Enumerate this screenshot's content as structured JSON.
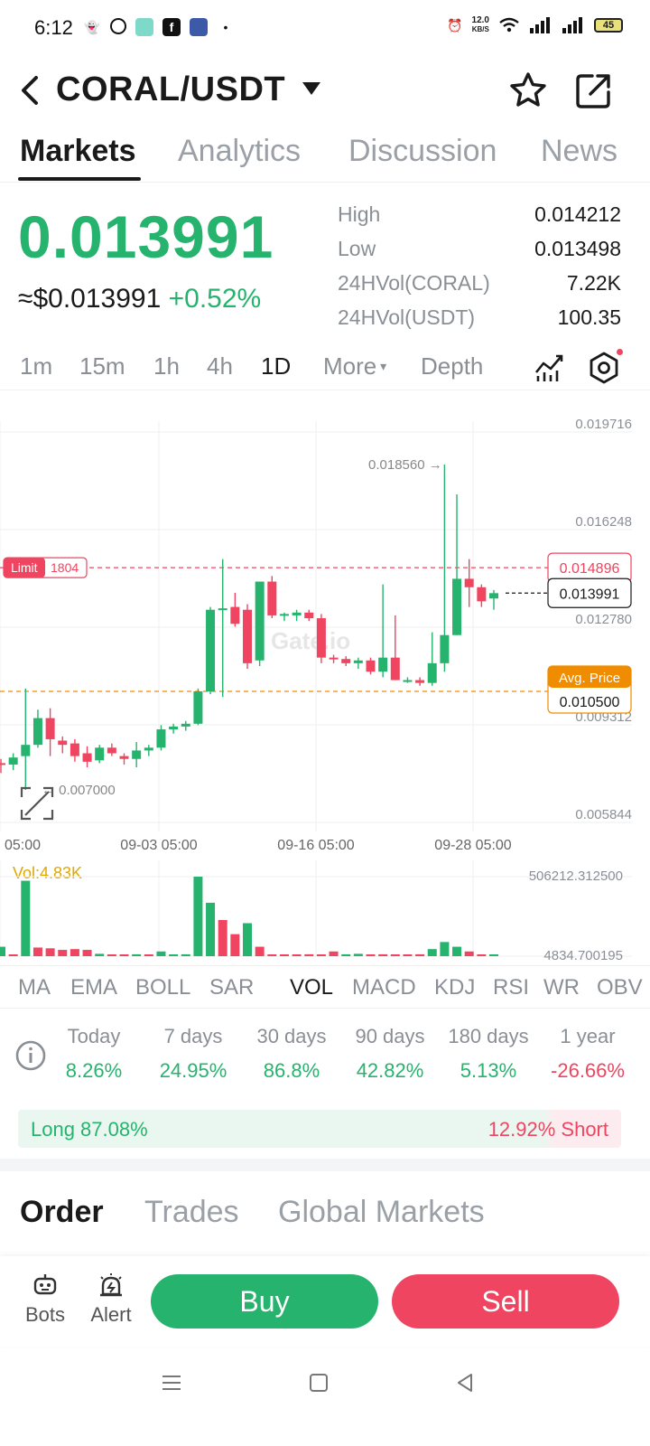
{
  "status_bar": {
    "time": "6:12",
    "network_speed_value": "12.0",
    "network_speed_unit": "KB/S",
    "battery": "45"
  },
  "header": {
    "pair": "CORAL/USDT"
  },
  "tabs": [
    "Markets",
    "Analytics",
    "Discussion",
    "News"
  ],
  "price": {
    "last": "0.013991",
    "usd": "≈$0.013991",
    "change": "+0.52%"
  },
  "stats": [
    {
      "label": "High",
      "value": "0.014212"
    },
    {
      "label": "Low",
      "value": "0.013498"
    },
    {
      "label": "24HVol(CORAL)",
      "value": "7.22K"
    },
    {
      "label": "24HVol(USDT)",
      "value": "100.35"
    }
  ],
  "intervals": [
    "1m",
    "15m",
    "1h",
    "4h",
    "1D",
    "More",
    "Depth"
  ],
  "chart_data": {
    "type": "candlestick",
    "y_ticks": [
      "0.019716",
      "0.016248",
      "0.012780",
      "0.009312",
      "0.005844"
    ],
    "ylim": [
      0.005844,
      0.019716
    ],
    "x_ticks": [
      "05:00",
      "09-03 05:00",
      "09-16 05:00",
      "09-28 05:00"
    ],
    "max_label": "0.018560 →",
    "min_label": "0.007000",
    "limit_label": "Limit",
    "limit_value": "1804",
    "limit_price": "0.014896",
    "current_price": "0.013991",
    "avg_price_label": "Avg. Price",
    "avg_price": "0.010500",
    "watermark": "Gate.io",
    "candles": [
      {
        "o": 0.00795,
        "h": 0.0081,
        "l": 0.0076,
        "c": 0.0079
      },
      {
        "o": 0.0079,
        "h": 0.0083,
        "l": 0.0077,
        "c": 0.00815
      },
      {
        "o": 0.0082,
        "h": 0.0106,
        "l": 0.007,
        "c": 0.0086
      },
      {
        "o": 0.0086,
        "h": 0.00985,
        "l": 0.0085,
        "c": 0.00955
      },
      {
        "o": 0.00955,
        "h": 0.0099,
        "l": 0.0082,
        "c": 0.0088
      },
      {
        "o": 0.00875,
        "h": 0.0089,
        "l": 0.0083,
        "c": 0.0086
      },
      {
        "o": 0.00865,
        "h": 0.0088,
        "l": 0.008,
        "c": 0.0082
      },
      {
        "o": 0.0083,
        "h": 0.00855,
        "l": 0.0078,
        "c": 0.008
      },
      {
        "o": 0.00805,
        "h": 0.0086,
        "l": 0.00795,
        "c": 0.0085
      },
      {
        "o": 0.0085,
        "h": 0.00865,
        "l": 0.0082,
        "c": 0.0083
      },
      {
        "o": 0.0082,
        "h": 0.0083,
        "l": 0.0079,
        "c": 0.0081
      },
      {
        "o": 0.0081,
        "h": 0.0087,
        "l": 0.0078,
        "c": 0.0084
      },
      {
        "o": 0.0084,
        "h": 0.0086,
        "l": 0.0082,
        "c": 0.0085
      },
      {
        "o": 0.0085,
        "h": 0.0093,
        "l": 0.0084,
        "c": 0.00915
      },
      {
        "o": 0.00915,
        "h": 0.00935,
        "l": 0.009,
        "c": 0.00925
      },
      {
        "o": 0.00925,
        "h": 0.00945,
        "l": 0.0091,
        "c": 0.00935
      },
      {
        "o": 0.00935,
        "h": 0.0106,
        "l": 0.0093,
        "c": 0.0105
      },
      {
        "o": 0.0105,
        "h": 0.0135,
        "l": 0.0104,
        "c": 0.0134
      },
      {
        "o": 0.0134,
        "h": 0.0152,
        "l": 0.0103,
        "c": 0.01345
      },
      {
        "o": 0.0135,
        "h": 0.014,
        "l": 0.0128,
        "c": 0.0129
      },
      {
        "o": 0.0134,
        "h": 0.0136,
        "l": 0.0113,
        "c": 0.0115
      },
      {
        "o": 0.0116,
        "h": 0.0144,
        "l": 0.0114,
        "c": 0.0144
      },
      {
        "o": 0.0144,
        "h": 0.0146,
        "l": 0.0131,
        "c": 0.0132
      },
      {
        "o": 0.0132,
        "h": 0.0133,
        "l": 0.013,
        "c": 0.01325
      },
      {
        "o": 0.0132,
        "h": 0.0134,
        "l": 0.013,
        "c": 0.0133
      },
      {
        "o": 0.0133,
        "h": 0.0134,
        "l": 0.013,
        "c": 0.0131
      },
      {
        "o": 0.0131,
        "h": 0.01325,
        "l": 0.0115,
        "c": 0.0117
      },
      {
        "o": 0.0117,
        "h": 0.0118,
        "l": 0.0115,
        "c": 0.01165
      },
      {
        "o": 0.01165,
        "h": 0.01175,
        "l": 0.0114,
        "c": 0.0115
      },
      {
        "o": 0.0115,
        "h": 0.0117,
        "l": 0.0113,
        "c": 0.0116
      },
      {
        "o": 0.0116,
        "h": 0.0117,
        "l": 0.0111,
        "c": 0.0112
      },
      {
        "o": 0.0112,
        "h": 0.0143,
        "l": 0.011,
        "c": 0.0117
      },
      {
        "o": 0.0117,
        "h": 0.0132,
        "l": 0.0109,
        "c": 0.0109
      },
      {
        "o": 0.0109,
        "h": 0.011,
        "l": 0.0108,
        "c": 0.0109
      },
      {
        "o": 0.0109,
        "h": 0.011,
        "l": 0.0107,
        "c": 0.0108
      },
      {
        "o": 0.0108,
        "h": 0.0126,
        "l": 0.0107,
        "c": 0.0115
      },
      {
        "o": 0.0115,
        "h": 0.01856,
        "l": 0.0112,
        "c": 0.0125
      },
      {
        "o": 0.0125,
        "h": 0.0175,
        "l": 0.0125,
        "c": 0.0145
      },
      {
        "o": 0.0145,
        "h": 0.0152,
        "l": 0.0135,
        "c": 0.0142
      },
      {
        "o": 0.0142,
        "h": 0.0143,
        "l": 0.0135,
        "c": 0.0137
      },
      {
        "o": 0.0138,
        "h": 0.0141,
        "l": 0.0134,
        "c": 0.01399
      }
    ],
    "volume_label": "Vol:4.83K",
    "volume_ticks": [
      "506212.312500",
      "4834.700195"
    ],
    "volume_ylim": [
      0,
      506212.3125
    ],
    "volumes": [
      {
        "v": 60000,
        "up": true
      },
      {
        "v": 4000,
        "up": false
      },
      {
        "v": 480000,
        "up": true
      },
      {
        "v": 55000,
        "up": false
      },
      {
        "v": 50000,
        "up": false
      },
      {
        "v": 40000,
        "up": false
      },
      {
        "v": 45000,
        "up": false
      },
      {
        "v": 40000,
        "up": false
      },
      {
        "v": 15000,
        "up": true
      },
      {
        "v": 10000,
        "up": false
      },
      {
        "v": 6000,
        "up": false
      },
      {
        "v": 12000,
        "up": true
      },
      {
        "v": 8000,
        "up": false
      },
      {
        "v": 30000,
        "up": true
      },
      {
        "v": 10000,
        "up": true
      },
      {
        "v": 12000,
        "up": true
      },
      {
        "v": 506000,
        "up": true
      },
      {
        "v": 340000,
        "up": true
      },
      {
        "v": 230000,
        "up": false
      },
      {
        "v": 140000,
        "up": false
      },
      {
        "v": 210000,
        "up": true
      },
      {
        "v": 60000,
        "up": false
      },
      {
        "v": 8000,
        "up": false
      },
      {
        "v": 6000,
        "up": false
      },
      {
        "v": 8000,
        "up": false
      },
      {
        "v": 12000,
        "up": false
      },
      {
        "v": 6000,
        "up": false
      },
      {
        "v": 30000,
        "up": false
      },
      {
        "v": 12000,
        "up": true
      },
      {
        "v": 15000,
        "up": true
      },
      {
        "v": 10000,
        "up": false
      },
      {
        "v": 12000,
        "up": false
      },
      {
        "v": 10000,
        "up": false
      },
      {
        "v": 10000,
        "up": false
      },
      {
        "v": 12000,
        "up": false
      },
      {
        "v": 45000,
        "up": true
      },
      {
        "v": 90000,
        "up": true
      },
      {
        "v": 60000,
        "up": true
      },
      {
        "v": 30000,
        "up": false
      },
      {
        "v": 10000,
        "up": false
      },
      {
        "v": 4834,
        "up": true
      }
    ]
  },
  "indicator_tabs": [
    "MA",
    "EMA",
    "BOLL",
    "SAR",
    "VOL",
    "MACD",
    "KDJ",
    "RSI",
    "WR",
    "OBV"
  ],
  "performance": [
    {
      "label": "Today",
      "value": "8.26%"
    },
    {
      "label": "7 days",
      "value": "24.95%"
    },
    {
      "label": "30 days",
      "value": "86.8%"
    },
    {
      "label": "90 days",
      "value": "42.82%"
    },
    {
      "label": "180 days",
      "value": "5.13%"
    },
    {
      "label": "1 year",
      "value": "-26.66%"
    }
  ],
  "long_short": {
    "long": "Long 87.08%",
    "short": "12.92% Short",
    "long_fraction": 0.8708
  },
  "bottom_tabs": [
    "Order",
    "Trades",
    "Global Markets"
  ],
  "actions": {
    "bots": "Bots",
    "alert": "Alert",
    "buy": "Buy",
    "sell": "Sell"
  },
  "colors": {
    "up": "#26b36e",
    "down": "#ef4560",
    "avg": "#f08c00",
    "volume_label": "#e0a800"
  }
}
